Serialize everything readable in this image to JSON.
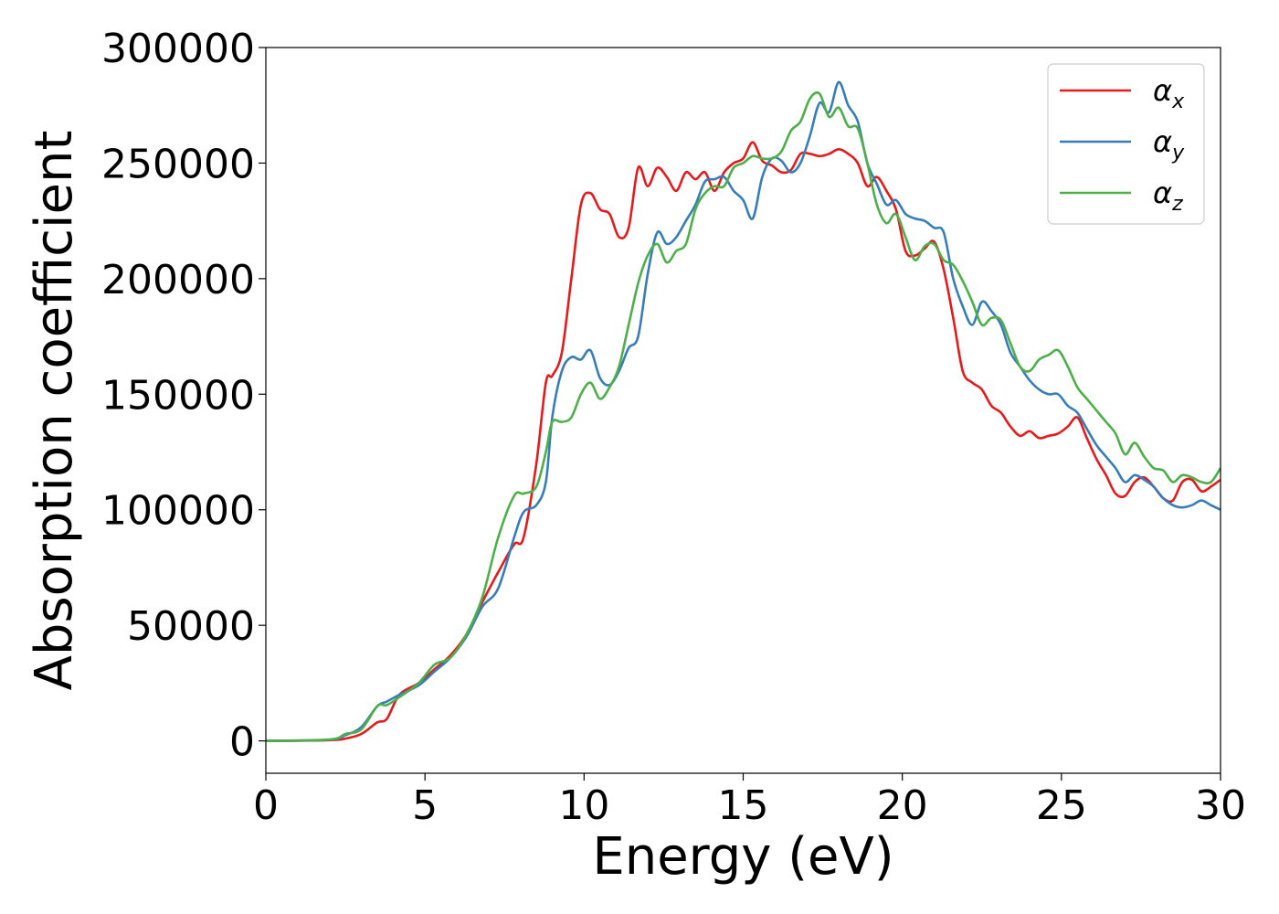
{
  "chart_data": {
    "type": "line",
    "title": "",
    "xlabel": "Energy (eV)",
    "ylabel": "Absorption coefficient",
    "xlim": [
      0,
      30
    ],
    "ylim": [
      -14000,
      300000
    ],
    "xticks": [
      0,
      5,
      10,
      15,
      20,
      25,
      30
    ],
    "xtick_labels": [
      "0",
      "5",
      "10",
      "15",
      "20",
      "25",
      "30"
    ],
    "yticks": [
      0,
      50000,
      100000,
      150000,
      200000,
      250000,
      300000
    ],
    "ytick_labels": [
      "0",
      "50000",
      "100000",
      "150000",
      "200000",
      "250000",
      "300000"
    ],
    "grid": false,
    "legend": "top-right",
    "series": [
      {
        "name": "αx",
        "symbol": "α",
        "subscript": "x",
        "color": "#e41a1c",
        "x": [
          0,
          2.0,
          2.5,
          3.0,
          3.5,
          3.8,
          4.2,
          4.8,
          5.3,
          5.8,
          6.3,
          6.8,
          7.3,
          7.8,
          8.1,
          8.5,
          8.8,
          9.0,
          9.3,
          9.6,
          9.9,
          10.2,
          10.5,
          10.8,
          11.1,
          11.4,
          11.7,
          12.0,
          12.3,
          12.6,
          12.9,
          13.2,
          13.5,
          13.8,
          14.1,
          14.4,
          14.7,
          15.0,
          15.3,
          15.6,
          15.9,
          16.2,
          16.5,
          16.8,
          17.1,
          17.4,
          17.7,
          18.0,
          18.3,
          18.6,
          18.9,
          19.2,
          19.5,
          19.8,
          20.1,
          20.4,
          20.7,
          21.0,
          21.3,
          21.6,
          21.9,
          22.2,
          22.5,
          22.8,
          23.1,
          23.4,
          23.7,
          24.0,
          24.3,
          24.6,
          24.9,
          25.2,
          25.5,
          25.8,
          26.1,
          26.4,
          26.7,
          27.0,
          27.3,
          27.6,
          27.9,
          28.2,
          28.5,
          28.8,
          29.1,
          29.4,
          29.7,
          30.0
        ],
        "y": [
          0,
          300,
          1000,
          3000,
          8000,
          9500,
          20000,
          25000,
          31000,
          37000,
          46000,
          60000,
          73000,
          85000,
          88000,
          120000,
          155000,
          158000,
          168000,
          200000,
          232000,
          237000,
          230000,
          228000,
          218000,
          222000,
          248000,
          240000,
          248000,
          244000,
          238000,
          246000,
          243000,
          246000,
          238000,
          246000,
          250000,
          252000,
          259000,
          251000,
          249000,
          246000,
          247000,
          254000,
          254000,
          253000,
          254000,
          256000,
          254000,
          250000,
          240000,
          244000,
          238000,
          230000,
          212000,
          210000,
          213000,
          216000,
          204000,
          183000,
          160000,
          155000,
          152000,
          145000,
          142000,
          136000,
          132000,
          134000,
          131000,
          132000,
          133000,
          136000,
          140000,
          131000,
          122000,
          115000,
          107000,
          106000,
          112000,
          114000,
          110000,
          105000,
          104000,
          112000,
          113000,
          108000,
          110000,
          113000
        ]
      },
      {
        "name": "αy",
        "symbol": "α",
        "subscript": "y",
        "color": "#377eb8",
        "x": [
          0,
          2.0,
          2.5,
          3.0,
          3.5,
          3.8,
          4.2,
          4.8,
          5.3,
          5.8,
          6.3,
          6.8,
          7.3,
          7.8,
          8.1,
          8.5,
          8.8,
          9.0,
          9.3,
          9.6,
          9.9,
          10.2,
          10.5,
          10.8,
          11.1,
          11.4,
          11.7,
          12.0,
          12.3,
          12.6,
          12.9,
          13.2,
          13.5,
          13.8,
          14.1,
          14.4,
          14.7,
          15.0,
          15.3,
          15.6,
          15.9,
          16.2,
          16.5,
          16.8,
          17.1,
          17.4,
          17.7,
          18.0,
          18.3,
          18.6,
          18.9,
          19.2,
          19.5,
          19.8,
          20.1,
          20.4,
          20.7,
          21.0,
          21.3,
          21.6,
          21.9,
          22.2,
          22.5,
          22.8,
          23.1,
          23.4,
          23.7,
          24.0,
          24.3,
          24.6,
          24.9,
          25.2,
          25.5,
          25.8,
          26.1,
          26.4,
          26.7,
          27.0,
          27.3,
          27.6,
          27.9,
          28.2,
          28.5,
          28.8,
          29.1,
          29.4,
          29.7,
          30.0
        ],
        "y": [
          0,
          500,
          2500,
          6000,
          15000,
          17000,
          20000,
          24000,
          30000,
          36000,
          45000,
          58000,
          66000,
          88000,
          99000,
          102000,
          112000,
          140000,
          160000,
          166000,
          165000,
          169000,
          157000,
          154000,
          160000,
          170000,
          175000,
          202000,
          220000,
          215000,
          218000,
          225000,
          232000,
          242000,
          243000,
          244000,
          238000,
          234000,
          226000,
          244000,
          252000,
          251000,
          246000,
          250000,
          262000,
          276000,
          272000,
          285000,
          275000,
          268000,
          250000,
          241000,
          232000,
          234000,
          228000,
          226000,
          225000,
          222000,
          220000,
          200000,
          188000,
          180000,
          190000,
          186000,
          180000,
          168000,
          162000,
          156000,
          152000,
          150000,
          150000,
          145000,
          142000,
          135000,
          128000,
          123000,
          118000,
          112000,
          115000,
          113000,
          110000,
          105000,
          102000,
          101000,
          102000,
          104000,
          102000,
          100000
        ]
      },
      {
        "name": "αz",
        "symbol": "α",
        "subscript": "z",
        "color": "#4daf4a",
        "x": [
          0,
          2.0,
          2.5,
          3.0,
          3.5,
          3.8,
          4.2,
          4.8,
          5.3,
          5.8,
          6.3,
          6.8,
          7.3,
          7.8,
          8.1,
          8.5,
          8.8,
          9.0,
          9.3,
          9.6,
          9.9,
          10.2,
          10.5,
          10.8,
          11.1,
          11.4,
          11.7,
          12.0,
          12.3,
          12.6,
          12.9,
          13.2,
          13.5,
          13.8,
          14.1,
          14.4,
          14.7,
          15.0,
          15.3,
          15.6,
          15.9,
          16.2,
          16.5,
          16.8,
          17.1,
          17.4,
          17.7,
          18.0,
          18.3,
          18.6,
          18.9,
          19.2,
          19.5,
          19.8,
          20.1,
          20.4,
          20.7,
          21.0,
          21.3,
          21.6,
          21.9,
          22.2,
          22.5,
          22.8,
          23.1,
          23.4,
          23.7,
          24.0,
          24.3,
          24.6,
          24.9,
          25.2,
          25.5,
          25.8,
          26.1,
          26.4,
          26.7,
          27.0,
          27.3,
          27.6,
          27.9,
          28.2,
          28.5,
          28.8,
          29.1,
          29.4,
          29.7,
          30.0
        ],
        "y": [
          0,
          600,
          3000,
          5000,
          15000,
          15500,
          19000,
          25000,
          33000,
          36000,
          46000,
          62000,
          88000,
          106000,
          107000,
          110000,
          125000,
          138000,
          138000,
          140000,
          150000,
          155000,
          148000,
          153000,
          162000,
          180000,
          198000,
          210000,
          215000,
          207000,
          212000,
          215000,
          230000,
          237000,
          240000,
          240000,
          248000,
          250000,
          253000,
          252000,
          252000,
          255000,
          264000,
          268000,
          278000,
          280000,
          270000,
          274000,
          266000,
          265000,
          250000,
          232000,
          224000,
          228000,
          218000,
          208000,
          214000,
          215000,
          208000,
          206000,
          199000,
          190000,
          180000,
          183000,
          182000,
          172000,
          162000,
          160000,
          165000,
          167000,
          169000,
          162000,
          153000,
          148000,
          143000,
          138000,
          133000,
          124000,
          129000,
          123000,
          118000,
          117000,
          112000,
          115000,
          114000,
          112000,
          112000,
          118000
        ]
      }
    ]
  }
}
